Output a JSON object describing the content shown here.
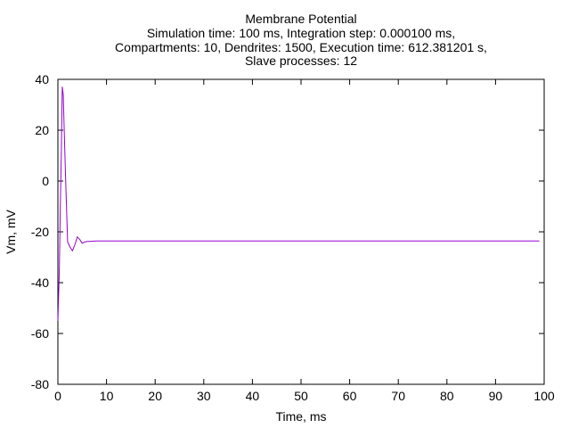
{
  "chart_data": {
    "type": "line",
    "title": "Membrane Potential",
    "subtitle_lines": [
      "Simulation time: 100 ms, Integration step: 0.000100 ms,",
      "Compartments: 10, Dendrites: 1500, Execution time: 612.381201 s,",
      "Slave processes: 12"
    ],
    "xlabel": "Time, ms",
    "ylabel": "Vm, mV",
    "xlim": [
      0,
      100
    ],
    "ylim": [
      -80,
      40
    ],
    "x_ticks": [
      "0",
      "10",
      "20",
      "30",
      "40",
      "50",
      "60",
      "70",
      "80",
      "90",
      "100"
    ],
    "y_ticks": [
      "40",
      "20",
      "0",
      "-20",
      "-40",
      "-60",
      "-80"
    ],
    "grid": false,
    "series": [
      {
        "color": "#9400d3",
        "x": [
          0,
          0.3,
          0.5,
          0.7,
          0.9,
          1.1,
          1.3,
          1.6,
          2.0,
          2.5,
          3.0,
          3.5,
          4.0,
          4.5,
          5.0,
          5.5,
          6.0,
          8.0,
          15,
          30,
          50,
          70,
          90,
          99
        ],
        "y": [
          -55,
          -35,
          -10,
          10,
          37,
          34,
          20,
          0,
          -24,
          -26,
          -27.5,
          -25,
          -22,
          -23,
          -24.5,
          -24,
          -23.8,
          -23.6,
          -23.6,
          -23.6,
          -23.6,
          -23.6,
          -23.6,
          -23.6
        ]
      }
    ]
  }
}
